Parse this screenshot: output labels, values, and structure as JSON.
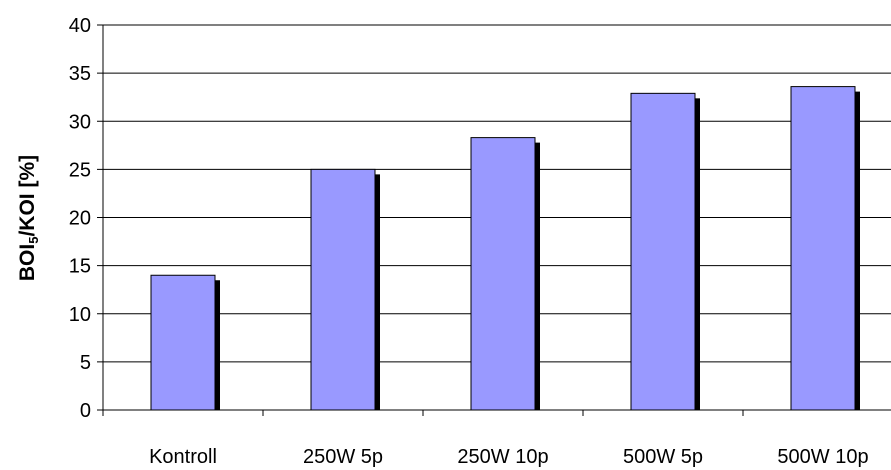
{
  "colors": {
    "bar_fill": "#9999ff",
    "bar_shadow": "#000000",
    "gridline": "#000000",
    "axis": "#000000",
    "background": "#ffffff"
  },
  "chart_data": {
    "type": "bar",
    "title": "",
    "xlabel": "",
    "ylabel": "BOI5/KOI [%]",
    "ylabel_parts": {
      "main1": "BOI",
      "sub": "5",
      "main2": "/KOI [%]"
    },
    "categories": [
      "Kontroll",
      "250W 5p",
      "250W 10p",
      "500W 5p",
      "500W 10p"
    ],
    "values": [
      14.0,
      25.0,
      28.3,
      32.9,
      33.6
    ],
    "ylim": [
      0,
      40
    ],
    "yticks": [
      0,
      5,
      10,
      15,
      20,
      25,
      30,
      35,
      40
    ],
    "grid": true,
    "legend": "none"
  }
}
